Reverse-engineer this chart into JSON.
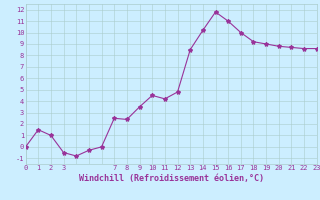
{
  "x": [
    0,
    1,
    2,
    3,
    4,
    5,
    6,
    7,
    8,
    9,
    10,
    11,
    12,
    13,
    14,
    15,
    16,
    17,
    18,
    19,
    20,
    21,
    22,
    23
  ],
  "y": [
    0.0,
    1.5,
    1.0,
    -0.5,
    -0.8,
    -0.3,
    0.0,
    2.5,
    2.4,
    3.5,
    4.5,
    4.2,
    4.8,
    8.5,
    10.2,
    11.8,
    11.0,
    10.0,
    9.2,
    9.0,
    8.8,
    8.7,
    8.6,
    8.6
  ],
  "line_color": "#993399",
  "marker": "*",
  "marker_size": 3,
  "bg_color": "#cceeff",
  "grid_color": "#aacccc",
  "xlabel": "Windchill (Refroidissement éolien,°C)",
  "xlim": [
    0,
    23
  ],
  "ylim": [
    -1.5,
    12.5
  ],
  "xticks": [
    0,
    1,
    2,
    3,
    7,
    8,
    9,
    10,
    11,
    12,
    13,
    14,
    15,
    16,
    17,
    18,
    19,
    20,
    21,
    22,
    23
  ],
  "yticks": [
    -1,
    0,
    1,
    2,
    3,
    4,
    5,
    6,
    7,
    8,
    9,
    10,
    11,
    12
  ],
  "tick_fontsize": 5,
  "xlabel_fontsize": 6
}
